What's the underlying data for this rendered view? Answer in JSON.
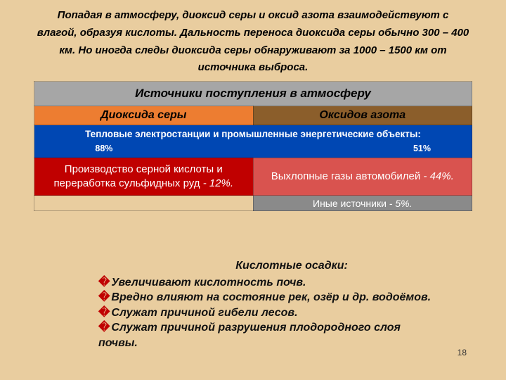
{
  "background_color": "#e9cd9f",
  "intro_text": "Попадая в атмосферу, диоксид серы и оксид азота взаимодействуют с влагой, образуя кислоты. Дальность переноса диоксида серы обычно 300 – 400 км. Но иногда следы диоксида серы обнаруживают за 1000 – 1500 км от источника выброса.",
  "table": {
    "header_bg": "#a6a6a6",
    "header_text": "Источники поступления в атмосферу",
    "col_left": {
      "label": "Диоксида серы",
      "bg": "#ed7d31"
    },
    "col_right": {
      "label": "Оксидов азота",
      "bg": "#8b5e2b"
    },
    "row3": {
      "bg": "#0047b3",
      "text": "Тепловые электростанции и промышленные энергетические объекты:",
      "pct_left": "88%",
      "pct_right": "51%"
    },
    "row4": {
      "left": {
        "bg": "#c00000",
        "text": "Производство серной кислоты и переработка сульфидных руд",
        "pct": "- 12%."
      },
      "right": {
        "bg": "#d9534f",
        "text": "Выхлопные газы автомобилей",
        "pct": "- 44%."
      }
    },
    "row5": {
      "left_bg": "#e9cd9f",
      "right": {
        "bg": "#8a8a8a",
        "text": "Иные источники",
        "pct": "- 5%."
      }
    }
  },
  "overlay": {
    "title": "Кислотные осадки:",
    "items": [
      "Увеличивают кислотность почв.",
      "Вредно влияют на состояние рек, озёр и др. водоёмов.",
      "Служат причиной гибели лесов.",
      "Служат причиной разрушения плодородного слоя почвы."
    ]
  },
  "page_number": "18"
}
